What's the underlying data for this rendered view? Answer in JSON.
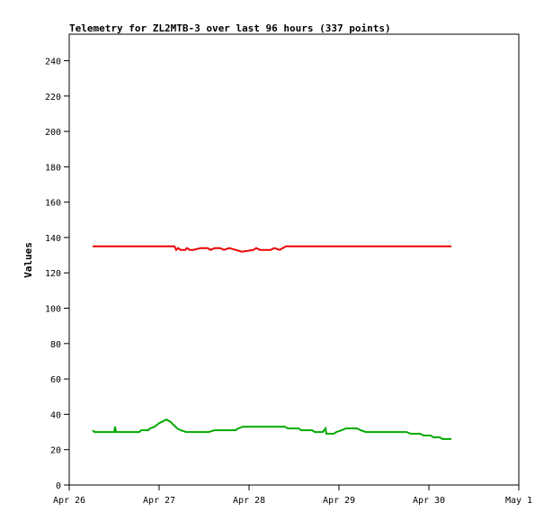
{
  "chart_data": {
    "type": "line",
    "title": "Telemetry for ZL2MTB-3 over last 96 hours (337 points)",
    "xlabel": "",
    "ylabel": "Values",
    "x_tick_labels": [
      "Apr 26",
      "Apr 27",
      "Apr 28",
      "Apr 29",
      "Apr 30",
      "May 1"
    ],
    "y_ticks": [
      0,
      20,
      40,
      60,
      80,
      100,
      120,
      140,
      160,
      180,
      200,
      220,
      240
    ],
    "xlim_days": [
      0,
      5
    ],
    "ylim": [
      0,
      255
    ],
    "grid": false,
    "legend": "none",
    "series": [
      {
        "color": "#ee0000",
        "points": [
          [
            0.26,
            135
          ],
          [
            1.17,
            135
          ],
          [
            1.19,
            133
          ],
          [
            1.21,
            134
          ],
          [
            1.24,
            133
          ],
          [
            1.29,
            133
          ],
          [
            1.31,
            134
          ],
          [
            1.34,
            133
          ],
          [
            1.38,
            133
          ],
          [
            1.46,
            134
          ],
          [
            1.54,
            134
          ],
          [
            1.57,
            133
          ],
          [
            1.62,
            134
          ],
          [
            1.68,
            134
          ],
          [
            1.72,
            133
          ],
          [
            1.78,
            134
          ],
          [
            1.85,
            133
          ],
          [
            1.92,
            132
          ],
          [
            2.05,
            133
          ],
          [
            2.08,
            134
          ],
          [
            2.12,
            133
          ],
          [
            2.24,
            133
          ],
          [
            2.28,
            134
          ],
          [
            2.34,
            133
          ],
          [
            2.41,
            135
          ],
          [
            4.25,
            135
          ]
        ]
      },
      {
        "color": "#00aa00",
        "points": [
          [
            0.26,
            31
          ],
          [
            0.28,
            30
          ],
          [
            0.5,
            30
          ],
          [
            0.51,
            33
          ],
          [
            0.52,
            30
          ],
          [
            0.78,
            30
          ],
          [
            0.8,
            31
          ],
          [
            0.88,
            31
          ],
          [
            0.9,
            32
          ],
          [
            0.95,
            33
          ],
          [
            1.0,
            35
          ],
          [
            1.04,
            36
          ],
          [
            1.08,
            37
          ],
          [
            1.12,
            36
          ],
          [
            1.16,
            34
          ],
          [
            1.2,
            32
          ],
          [
            1.24,
            31
          ],
          [
            1.3,
            30
          ],
          [
            1.55,
            30
          ],
          [
            1.62,
            31
          ],
          [
            1.85,
            31
          ],
          [
            1.88,
            32
          ],
          [
            1.93,
            33
          ],
          [
            2.4,
            33
          ],
          [
            2.43,
            32
          ],
          [
            2.55,
            32
          ],
          [
            2.58,
            31
          ],
          [
            2.7,
            31
          ],
          [
            2.73,
            30
          ],
          [
            2.82,
            30
          ],
          [
            2.85,
            32
          ],
          [
            2.86,
            29
          ],
          [
            2.94,
            29
          ],
          [
            2.97,
            30
          ],
          [
            3.03,
            31
          ],
          [
            3.08,
            32
          ],
          [
            3.2,
            32
          ],
          [
            3.24,
            31
          ],
          [
            3.3,
            30
          ],
          [
            3.75,
            30
          ],
          [
            3.8,
            29
          ],
          [
            3.9,
            29
          ],
          [
            3.94,
            28
          ],
          [
            4.02,
            28
          ],
          [
            4.05,
            27
          ],
          [
            4.12,
            27
          ],
          [
            4.15,
            26
          ],
          [
            4.25,
            26
          ]
        ]
      }
    ]
  }
}
